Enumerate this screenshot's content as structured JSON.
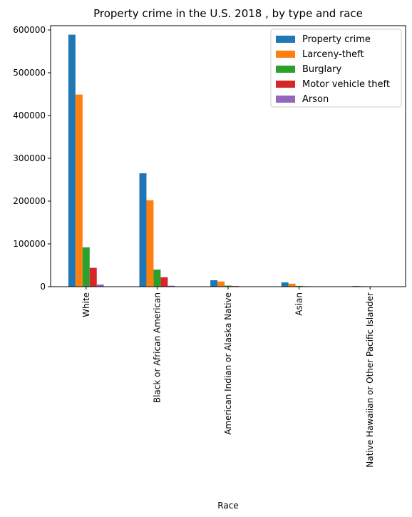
{
  "chart_data": {
    "type": "bar",
    "title": "Property crime in the U.S. 2018 , by type and race",
    "xlabel": "Race",
    "ylabel": "",
    "ylim": [
      0,
      600000
    ],
    "yticks": [
      0,
      100000,
      200000,
      300000,
      400000,
      500000,
      600000
    ],
    "ytick_labels": [
      "0",
      "100000",
      "200000",
      "300000",
      "400000",
      "500000",
      "600000"
    ],
    "grid": false,
    "legend_position": "top-right",
    "categories": [
      "White",
      "Black or  African American",
      "American Indian or Alaska Native",
      "Asian",
      "Native Hawaiian or Other Pacific Islander"
    ],
    "series": [
      {
        "name": "Property crime",
        "color": "#1f77b4",
        "values": [
          589000,
          265000,
          15000,
          10000,
          1500
        ]
      },
      {
        "name": "Larceny-theft",
        "color": "#ff7f0e",
        "values": [
          449000,
          202000,
          12000,
          7000,
          1200
        ]
      },
      {
        "name": "Burglary",
        "color": "#2ca02c",
        "values": [
          92000,
          40000,
          2500,
          1800,
          250
        ]
      },
      {
        "name": "Motor vehicle theft",
        "color": "#d62728",
        "values": [
          44000,
          22000,
          1500,
          1000,
          200
        ]
      },
      {
        "name": "Arson",
        "color": "#9467bd",
        "values": [
          5000,
          2200,
          200,
          100,
          20
        ]
      }
    ]
  }
}
